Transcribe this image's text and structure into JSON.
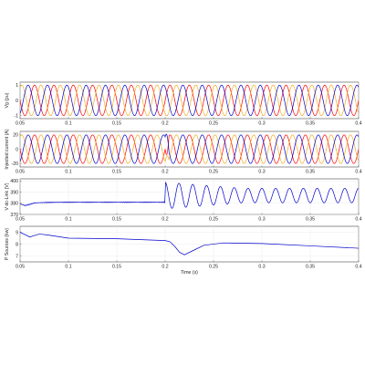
{
  "chart_data": [
    {
      "type": "line",
      "ylabel": "Vg (pu)",
      "xlim": [
        0.05,
        0.4
      ],
      "ylim": [
        -1.2,
        1.2
      ],
      "x_ticks": [
        "0.05",
        "0.1",
        "0.15",
        "0.2",
        "0.25",
        "0.3",
        "0.35",
        "0.4"
      ],
      "y_ticks": [
        "-1",
        "0",
        "1"
      ],
      "grid": true,
      "waveform": {
        "kind": "three_phase_sine",
        "frequency_hz": 50,
        "amplitude": 1.0
      },
      "series": [
        {
          "color": "#ff0000",
          "phase_deg": 0
        },
        {
          "color": "#f0b020",
          "phase_deg": -120
        },
        {
          "color": "#0000cc",
          "phase_deg": 120
        }
      ]
    },
    {
      "type": "line",
      "ylabel": "Injected current (A)",
      "xlim": [
        0.05,
        0.4
      ],
      "ylim": [
        -25,
        25
      ],
      "x_ticks": [
        "0.05",
        "0.1",
        "0.15",
        "0.2",
        "0.25",
        "0.3",
        "0.35",
        "0.4"
      ],
      "y_ticks": [
        "-20",
        "0",
        "20"
      ],
      "grid": true,
      "waveform": {
        "kind": "three_phase_sine",
        "frequency_hz": 50,
        "amplitude": 20,
        "transient_at": 0.2
      },
      "series": [
        {
          "color": "#ff0000",
          "phase_deg": 0
        },
        {
          "color": "#f0b020",
          "phase_deg": -120
        },
        {
          "color": "#0000cc",
          "phase_deg": 120
        }
      ]
    },
    {
      "type": "line",
      "ylabel": "V dc-Link (V)",
      "xlim": [
        0.05,
        0.4
      ],
      "ylim": [
        370,
        402
      ],
      "x_ticks": [
        "0.05",
        "0.1",
        "0.15",
        "0.2",
        "0.25",
        "0.3",
        "0.35",
        "0.4"
      ],
      "y_ticks": [
        "370",
        "380",
        "390",
        "400"
      ],
      "grid": true,
      "points": [
        [
          0.05,
          379.5
        ],
        [
          0.055,
          378.0
        ],
        [
          0.06,
          379.0
        ],
        [
          0.065,
          380.4
        ],
        [
          0.07,
          380.6
        ],
        [
          0.08,
          380.8
        ],
        [
          0.09,
          380.9
        ],
        [
          0.1,
          381.0
        ],
        [
          0.12,
          381.0
        ],
        [
          0.15,
          381.0
        ],
        [
          0.18,
          381.0
        ],
        [
          0.2,
          381.0
        ],
        [
          0.201,
          390.0
        ],
        [
          0.21,
          400.0
        ]
      ],
      "oscillation": {
        "start": 0.2,
        "center": 387,
        "initial_amplitude": 12,
        "final_amplitude": 6.5,
        "frequency_hz": 70
      },
      "series": [
        {
          "color": "#0000cc"
        }
      ]
    },
    {
      "type": "line",
      "ylabel": "P Sources (kw)",
      "xlabel": "Time (s)",
      "xlim": [
        0.05,
        0.4
      ],
      "ylim": [
        6.5,
        9.5
      ],
      "x_ticks": [
        "0.05",
        "0.1",
        "0.15",
        "0.2",
        "0.25",
        "0.3",
        "0.35",
        "0.4"
      ],
      "y_ticks": [
        "7",
        "8",
        "9"
      ],
      "grid": true,
      "points": [
        [
          0.05,
          9.0
        ],
        [
          0.06,
          8.6
        ],
        [
          0.07,
          8.85
        ],
        [
          0.08,
          8.75
        ],
        [
          0.1,
          8.5
        ],
        [
          0.15,
          8.45
        ],
        [
          0.2,
          8.3
        ],
        [
          0.205,
          8.2
        ],
        [
          0.21,
          7.8
        ],
        [
          0.215,
          7.3
        ],
        [
          0.22,
          7.1
        ],
        [
          0.23,
          7.5
        ],
        [
          0.24,
          7.9
        ],
        [
          0.26,
          8.1
        ],
        [
          0.3,
          8.05
        ],
        [
          0.35,
          7.85
        ],
        [
          0.4,
          7.65
        ]
      ],
      "series": [
        {
          "color": "#0000cc"
        }
      ]
    }
  ]
}
